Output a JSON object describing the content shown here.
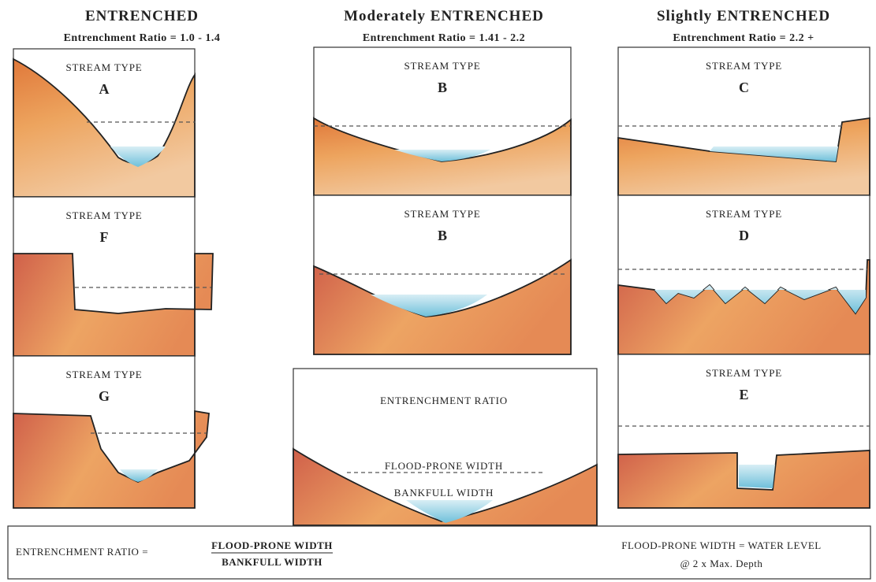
{
  "columns": [
    {
      "title": "ENTRENCHED",
      "subtitle": "Entrenchment Ratio = 1.0 - 1.4",
      "panels": [
        {
          "label": "STREAM TYPE",
          "letter": "A"
        },
        {
          "label": "STREAM TYPE",
          "letter": "F"
        },
        {
          "label": "STREAM TYPE",
          "letter": "G"
        }
      ]
    },
    {
      "title": "Moderately ENTRENCHED",
      "subtitle": "Entrenchment Ratio = 1.41 - 2.2",
      "panels": [
        {
          "label": "STREAM TYPE",
          "letter": "B"
        },
        {
          "label": "STREAM TYPE",
          "letter": "B"
        }
      ]
    },
    {
      "title": "Slightly ENTRENCHED",
      "subtitle": "Entrenchment Ratio = 2.2 +",
      "panels": [
        {
          "label": "STREAM TYPE",
          "letter": "C"
        },
        {
          "label": "STREAM TYPE",
          "letter": "D"
        },
        {
          "label": "STREAM TYPE",
          "letter": "E"
        }
      ]
    }
  ],
  "ratio_box": {
    "title": "ENTRENCHMENT RATIO",
    "flood_prone": "FLOOD-PRONE WIDTH",
    "bankfull": "BANKFULL WIDTH"
  },
  "formula": {
    "lhs": "ENTRENCHMENT RATIO =",
    "numerator": "FLOOD-PRONE WIDTH",
    "denominator": "BANKFULL WIDTH",
    "definition_line1": "FLOOD-PRONE WIDTH = WATER LEVEL",
    "definition_line2": "@ 2 x Max. Depth"
  }
}
